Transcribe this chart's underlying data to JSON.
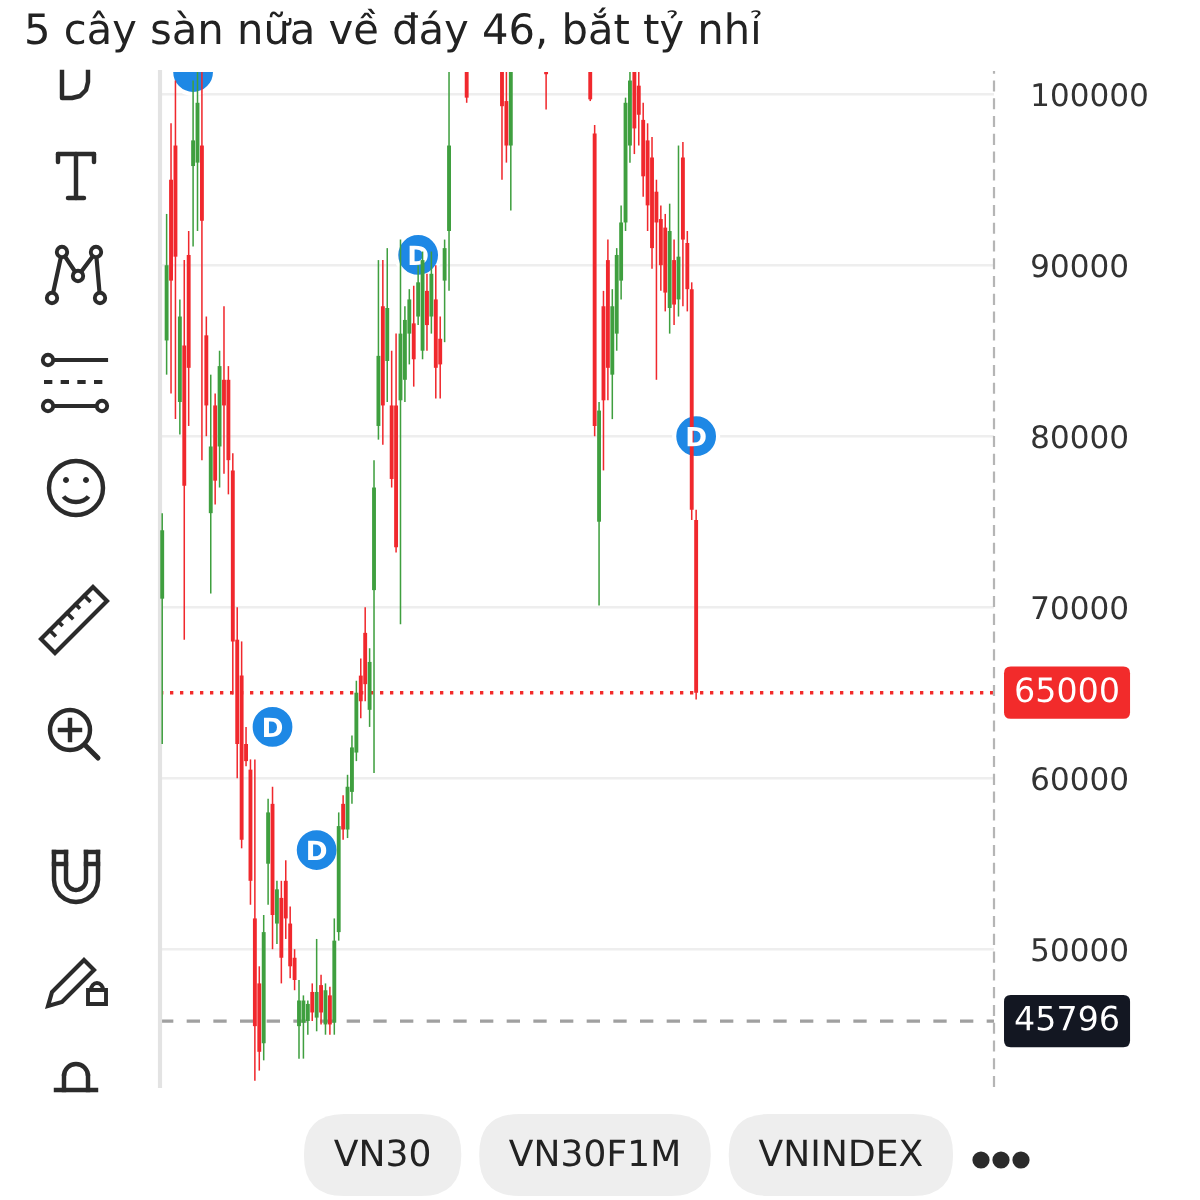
{
  "chart_data": {
    "type": "candlestick",
    "title": "5 cây sàn nữa về đáy 46, bắt tỷ nhỉ",
    "categories": [
      null,
      null,
      null,
      null,
      null,
      null,
      null,
      null,
      null,
      null,
      null,
      null,
      null,
      null,
      null,
      null,
      null,
      null,
      null,
      null,
      null,
      null,
      null,
      null,
      null,
      null,
      null,
      null,
      null,
      null,
      null,
      null,
      null,
      null,
      null,
      null,
      null,
      null,
      null,
      null,
      null,
      null,
      null,
      null,
      null,
      null,
      null,
      null,
      null,
      null,
      null,
      null,
      null,
      null,
      null,
      null,
      null,
      null,
      null,
      null,
      null,
      null,
      null,
      null,
      null,
      null,
      null,
      null,
      null,
      null,
      null,
      null,
      null,
      null,
      null,
      null,
      null,
      null,
      null,
      null,
      null,
      null,
      null,
      null,
      null,
      null,
      null,
      null,
      null,
      null,
      null,
      null,
      null,
      null,
      null,
      null,
      null,
      null,
      null,
      null,
      null,
      null,
      null,
      null,
      null,
      null,
      null,
      null,
      null,
      null,
      null,
      null,
      null,
      null,
      null,
      null,
      null,
      null,
      null,
      null,
      null,
      null,
      null,
      null,
      null,
      null,
      null,
      null,
      null,
      null,
      null,
      null,
      null,
      null,
      null,
      null,
      null,
      null,
      null,
      null,
      null,
      null,
      null,
      null,
      null,
      null,
      null,
      null,
      null,
      null,
      null,
      null,
      null,
      null,
      null,
      null,
      null,
      null,
      null,
      null,
      null,
      null,
      null,
      null,
      null,
      null,
      null,
      null,
      null,
      null,
      null,
      null,
      null,
      null,
      null,
      null,
      null,
      null,
      null,
      null,
      null,
      null,
      null,
      null,
      null,
      null,
      null,
      null,
      null
    ],
    "ohlc": [
      [
        70500,
        75500,
        62000,
        74500
      ],
      [
        85600,
        93000,
        83600,
        90000
      ],
      [
        95000,
        98300,
        82500,
        89100
      ],
      [
        97000,
        100800,
        81000,
        90500
      ],
      [
        82000,
        88000,
        80100,
        87000
      ],
      [
        85300,
        90300,
        68100,
        77100
      ],
      [
        90600,
        92000,
        80600,
        84000
      ],
      [
        95800,
        100800,
        91100,
        97300
      ],
      [
        96000,
        101300,
        92000,
        99500
      ],
      [
        97000,
        101300,
        78600,
        92600
      ],
      [
        85900,
        87000,
        80000,
        81800
      ],
      [
        75500,
        83600,
        70800,
        79400
      ],
      [
        81800,
        82500,
        76000,
        77400
      ],
      [
        79400,
        85000,
        77000,
        84100
      ],
      [
        83300,
        87600,
        77800,
        81800
      ],
      [
        83300,
        84100,
        76600,
        78600
      ],
      [
        78000,
        79000,
        64900,
        68000
      ],
      [
        68100,
        70000,
        60000,
        62000
      ],
      [
        66000,
        68000,
        55900,
        56400
      ],
      [
        62000,
        63000,
        60700,
        61000
      ],
      [
        60500,
        61100,
        52600,
        54000
      ],
      [
        51800,
        61100,
        42300,
        45500
      ],
      [
        48000,
        49000,
        42900,
        44000
      ],
      [
        44500,
        52000,
        43500,
        51000
      ],
      [
        55000,
        58800,
        52600,
        58000
      ],
      [
        58500,
        59500,
        50000,
        52000
      ],
      [
        51500,
        54000,
        50300,
        53500
      ],
      [
        53000,
        54000,
        48000,
        49500
      ],
      [
        54000,
        55200,
        50600,
        51800
      ],
      [
        51500,
        52500,
        48300,
        49000
      ],
      [
        49500,
        50000,
        47600,
        48200
      ],
      [
        45500,
        48200,
        43600,
        47000
      ],
      [
        45700,
        47300,
        43600,
        47000
      ],
      [
        45800,
        47000,
        45000,
        46800
      ],
      [
        47500,
        48000,
        45800,
        46300
      ],
      [
        46000,
        50600,
        45200,
        47500
      ],
      [
        47900,
        48500,
        45600,
        46300
      ],
      [
        45600,
        48000,
        45000,
        47600
      ],
      [
        47300,
        47800,
        45000,
        45600
      ],
      [
        45700,
        51800,
        45000,
        50500
      ],
      [
        51000,
        58000,
        50500,
        57200
      ],
      [
        58500,
        59000,
        56400,
        57000
      ],
      [
        57000,
        60200,
        56500,
        59500
      ],
      [
        59200,
        62500,
        58500,
        61800
      ],
      [
        61500,
        65700,
        61000,
        65000
      ],
      [
        66000,
        67000,
        63500,
        64500
      ],
      [
        68500,
        70000,
        64500,
        65500
      ],
      [
        64000,
        67600,
        63000,
        66800
      ],
      [
        71000,
        78600,
        60300,
        77000
      ],
      [
        80600,
        90300,
        79800,
        84700
      ],
      [
        87600,
        90300,
        79500,
        81800
      ],
      [
        84400,
        91000,
        82000,
        87500
      ],
      [
        81800,
        85000,
        77000,
        77500
      ],
      [
        81800,
        86000,
        73200,
        73500
      ],
      [
        82100,
        91500,
        69000,
        86000
      ],
      [
        83300,
        87600,
        82000,
        86800
      ],
      [
        86000,
        88600,
        84200,
        88000
      ],
      [
        86600,
        88800,
        82900,
        84500
      ],
      [
        87000,
        90000,
        86500,
        89000
      ],
      [
        85000,
        90800,
        84500,
        90300
      ],
      [
        88500,
        89500,
        85000,
        86500
      ],
      [
        87000,
        90800,
        86000,
        89500
      ],
      [
        88000,
        90000,
        82200,
        84000
      ],
      [
        85700,
        87000,
        82200,
        84200
      ],
      [
        89100,
        91500,
        85500,
        91000
      ],
      [
        92000,
        101300,
        88500,
        97000
      ],
      null,
      null,
      null,
      [
        101300,
        101300,
        99500,
        99800
      ],
      null,
      null,
      null,
      null,
      null,
      null,
      null,
      [
        101300,
        101300,
        95000,
        99300
      ],
      [
        99600,
        101300,
        96000,
        97000
      ],
      [
        97000,
        101300,
        93200,
        101300
      ],
      null,
      null,
      null,
      null,
      null,
      null,
      null,
      [
        101300,
        101300,
        99100,
        101300
      ],
      null,
      null,
      null,
      null,
      null,
      null,
      null,
      null,
      null,
      [
        101300,
        101300,
        99600,
        99700
      ],
      [
        97700,
        98200,
        80000,
        80600
      ],
      [
        75000,
        82000,
        70100,
        81500
      ],
      [
        87600,
        88500,
        78000,
        82100
      ],
      [
        90300,
        91500,
        82100,
        84000
      ],
      [
        83600,
        88600,
        81000,
        87600
      ],
      [
        86000,
        91000,
        85000,
        90600
      ],
      [
        89100,
        93500,
        88000,
        92500
      ],
      [
        92500,
        99800,
        92000,
        99500
      ],
      [
        97000,
        101300,
        96000,
        100800
      ],
      [
        101300,
        101300,
        96500,
        98000
      ],
      [
        100500,
        101300,
        97000,
        98800
      ],
      [
        98500,
        99500,
        94000,
        95200
      ],
      [
        97300,
        98300,
        92000,
        93500
      ],
      [
        96300,
        97500,
        89800,
        91000
      ],
      [
        94300,
        95000,
        83300,
        92500
      ],
      [
        92700,
        93500,
        88500,
        90000
      ],
      [
        92200,
        93000,
        87300,
        88400
      ],
      [
        87500,
        93600,
        86000,
        92000
      ],
      [
        90300,
        91500,
        86500,
        87700
      ],
      [
        88000,
        97000,
        87000,
        90500
      ],
      [
        96300,
        97200,
        87600,
        91500
      ],
      [
        91300,
        92000,
        87300,
        88600
      ],
      [
        88600,
        89000,
        75100,
        75700
      ],
      [
        75100,
        75700,
        64600,
        65000
      ],
      null,
      null,
      null,
      null,
      null,
      null,
      null,
      null,
      null,
      null,
      null,
      null,
      null,
      null,
      null,
      null,
      null,
      null,
      null,
      null,
      null,
      null,
      null,
      null,
      null,
      null,
      null,
      null,
      null,
      null,
      null,
      null,
      null,
      null,
      null,
      null,
      null,
      null,
      null,
      null,
      null,
      null,
      null,
      null,
      null,
      null,
      null,
      null,
      null,
      null,
      null,
      null,
      null,
      null,
      null,
      null,
      null,
      null,
      null,
      null,
      null,
      null,
      null,
      null,
      null,
      null,
      null
    ],
    "colors": [
      "#3f9f3f",
      "#3f9f3f",
      "#f0282d",
      "#f0282d",
      "#3f9f3f",
      "#f0282d",
      "#f0282d",
      "#3f9f3f",
      "#3f9f3f",
      "#f0282d",
      "#f0282d",
      "#3f9f3f",
      "#f0282d",
      "#3f9f3f",
      "#f0282d",
      "#f0282d",
      "#f0282d",
      "#f0282d",
      "#f0282d",
      "#f0282d",
      "#f0282d",
      "#f0282d",
      "#f0282d",
      "#3f9f3f",
      "#3f9f3f",
      "#f0282d",
      "#3f9f3f",
      "#f0282d",
      "#f0282d",
      "#f0282d",
      "#f0282d",
      "#3f9f3f",
      "#3f9f3f",
      "#3f9f3f",
      "#f0282d",
      "#3f9f3f",
      "#f0282d",
      "#3f9f3f",
      "#f0282d",
      "#3f9f3f",
      "#3f9f3f",
      "#f0282d",
      "#3f9f3f",
      "#3f9f3f",
      "#3f9f3f",
      "#f0282d",
      "#f0282d",
      "#3f9f3f",
      "#3f9f3f",
      "#3f9f3f",
      "#f0282d",
      "#3f9f3f",
      "#f0282d",
      "#f0282d",
      "#3f9f3f",
      "#3f9f3f",
      "#3f9f3f",
      "#f0282d",
      "#3f9f3f",
      "#3f9f3f",
      "#f0282d",
      "#3f9f3f",
      "#f0282d",
      "#f0282d",
      "#3f9f3f",
      "#3f9f3f",
      null,
      null,
      null,
      "#f0282d",
      null,
      null,
      null,
      null,
      null,
      null,
      null,
      "#f0282d",
      "#f0282d",
      "#3f9f3f",
      null,
      null,
      null,
      null,
      null,
      null,
      null,
      "#f0282d",
      null,
      null,
      null,
      null,
      null,
      null,
      null,
      null,
      null,
      "#f0282d",
      "#f0282d",
      "#3f9f3f",
      "#f0282d",
      "#f0282d",
      "#3f9f3f",
      "#3f9f3f",
      "#3f9f3f",
      "#3f9f3f",
      "#3f9f3f",
      "#f0282d",
      "#f0282d",
      "#f0282d",
      "#f0282d",
      "#f0282d",
      "#f0282d",
      "#f0282d",
      "#f0282d",
      "#3f9f3f",
      "#f0282d",
      "#3f9f3f",
      "#f0282d",
      "#f0282d",
      "#f0282d",
      "#f0282d",
      null,
      null,
      null,
      null,
      null,
      null,
      null,
      null,
      null,
      null,
      null,
      null,
      null,
      null,
      null,
      null,
      null,
      null,
      null,
      null,
      null,
      null,
      null,
      null,
      null,
      null,
      null,
      null,
      null,
      null,
      null,
      null,
      null,
      null,
      null,
      null,
      null,
      null,
      null,
      null,
      null,
      null,
      null,
      null,
      null,
      null,
      null,
      null,
      null,
      null,
      null,
      null,
      null,
      null,
      null,
      null,
      null,
      null,
      null,
      null,
      null,
      null,
      null,
      null,
      null,
      null,
      null
    ],
    "series": [
      {
        "type": "scatter",
        "color": "#1e88e5",
        "marker": "circle",
        "values": [
          null,
          null,
          null,
          null,
          null,
          null,
          null,
          101300,
          null,
          null,
          null,
          null,
          null,
          null,
          null,
          null,
          null,
          null,
          null,
          null,
          null,
          null,
          null,
          null,
          null,
          63000,
          null,
          null,
          null,
          null,
          null,
          null,
          null,
          null,
          null,
          55800,
          null,
          null,
          null,
          null,
          null,
          null,
          null,
          null,
          null,
          null,
          null,
          null,
          null,
          null,
          null,
          null,
          null,
          null,
          null,
          null,
          null,
          null,
          90600,
          null,
          null,
          null,
          null,
          null,
          null,
          null,
          null,
          null,
          null,
          null,
          null,
          null,
          null,
          null,
          null,
          null,
          null,
          null,
          null,
          null,
          null,
          null,
          null,
          null,
          null,
          null,
          null,
          null,
          null,
          null,
          null,
          null,
          null,
          null,
          null,
          null,
          null,
          null,
          null,
          null,
          null,
          null,
          null,
          null,
          null,
          null,
          null,
          null,
          null,
          null,
          null,
          null,
          null,
          null,
          null,
          null,
          null,
          null,
          null,
          null,
          null,
          80000,
          null,
          null,
          null,
          null,
          null,
          null,
          null,
          null,
          null,
          null,
          null,
          null,
          null,
          null,
          null,
          null,
          null,
          null,
          null,
          null,
          null,
          null,
          null,
          null,
          null,
          null,
          null,
          null,
          null,
          null,
          null,
          null,
          null,
          null,
          null,
          null,
          null,
          null,
          null,
          null,
          null,
          null,
          null,
          null,
          null,
          null,
          null,
          null,
          null,
          null,
          null,
          null,
          null,
          null,
          null,
          null,
          null,
          null,
          null,
          null,
          null,
          null,
          null,
          null,
          null,
          null,
          null
        ],
        "value_labels": [
          null,
          null,
          null,
          null,
          null,
          null,
          null,
          null,
          null,
          null,
          null,
          null,
          null,
          null,
          null,
          null,
          null,
          null,
          null,
          null,
          null,
          null,
          null,
          null,
          null,
          "D",
          null,
          null,
          null,
          null,
          null,
          null,
          null,
          null,
          null,
          "D",
          null,
          null,
          null,
          null,
          null,
          null,
          null,
          null,
          null,
          null,
          null,
          null,
          null,
          null,
          null,
          null,
          null,
          null,
          null,
          null,
          null,
          null,
          "D",
          null,
          null,
          null,
          null,
          null,
          null,
          null,
          null,
          null,
          null,
          null,
          null,
          null,
          null,
          null,
          null,
          null,
          null,
          null,
          null,
          null,
          null,
          null,
          null,
          null,
          null,
          null,
          null,
          null,
          null,
          null,
          null,
          null,
          null,
          null,
          null,
          null,
          null,
          null,
          null,
          null,
          null,
          null,
          null,
          null,
          null,
          null,
          null,
          null,
          null,
          null,
          null,
          null,
          null,
          null,
          null,
          null,
          null,
          null,
          null,
          null,
          null,
          "D",
          null,
          null,
          null,
          null,
          null,
          null,
          null,
          null,
          null,
          null,
          null,
          null,
          null,
          null,
          null,
          null,
          null,
          null,
          null,
          null,
          null,
          null,
          null,
          null,
          null,
          null,
          null,
          null,
          null,
          null,
          null,
          null,
          null,
          null,
          null,
          null,
          null,
          null,
          null,
          null,
          null,
          null,
          null,
          null,
          null,
          null,
          null,
          null,
          null,
          null,
          null,
          null,
          null,
          null,
          null,
          null,
          null,
          null,
          null,
          null,
          null,
          null,
          null,
          null,
          null,
          null,
          null
        ]
      }
    ],
    "ylim": [
      42000,
      101300
    ],
    "yticks": [
      50000,
      60000,
      70000,
      80000,
      90000,
      100000
    ],
    "grid": "y",
    "tick_labels": "y",
    "ref_lines": [
      {
        "axis": "y",
        "value": 65000,
        "label": "65000",
        "color": "#f22b2b",
        "line_style": "dotted"
      },
      {
        "axis": "y",
        "value": 45796,
        "label": "45796",
        "color": "#a0a0a0",
        "line_style": "dashed"
      }
    ],
    "annotations": [
      "VN30",
      "VN30F1M",
      "VNINDEX"
    ]
  }
}
